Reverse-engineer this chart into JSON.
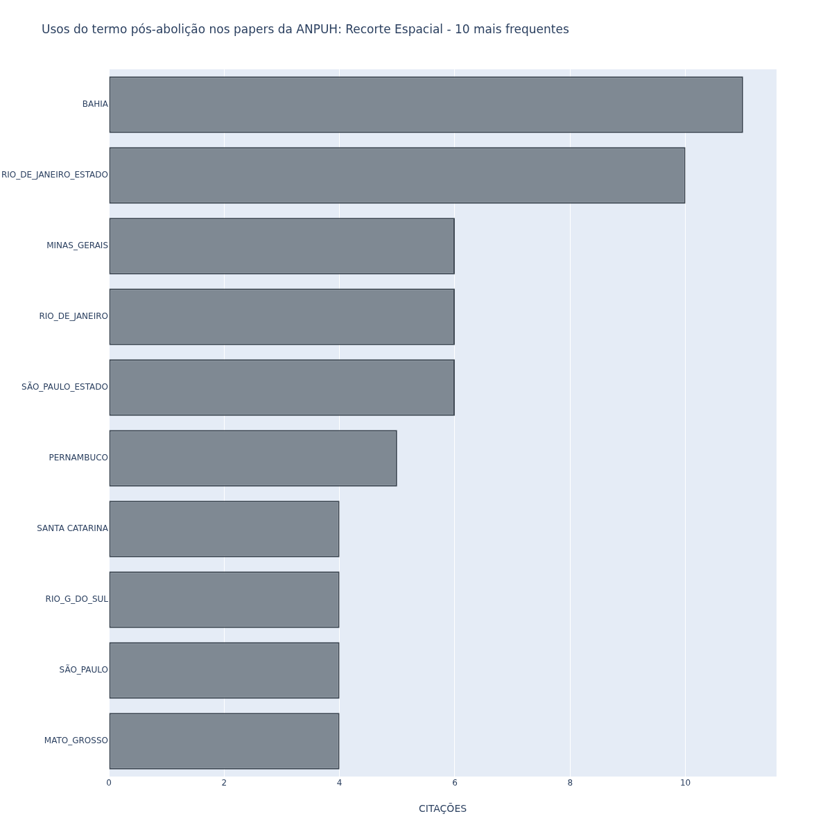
{
  "chart_data": {
    "type": "bar",
    "orientation": "horizontal",
    "title": "Usos do termo pós-abolição nos papers da ANPUH: Recorte Espacial - 10 mais frequentes",
    "xlabel": "CITAÇÕES",
    "categories": [
      "BAHIA",
      "RIO_DE_JANEIRO_ESTADO",
      "MINAS_GERAIS",
      "RIO_DE_JANEIRO",
      "SÃO_PAULO_ESTADO",
      "PERNAMBUCO",
      "SANTA CATARINA",
      "RIO_G_DO_SUL",
      "SÃO_PAULO",
      "MATO_GROSSO"
    ],
    "values": [
      11,
      10,
      6,
      6,
      6,
      5,
      4,
      4,
      4,
      4
    ],
    "color": "#7f8993",
    "xlim": [
      0,
      11.58
    ],
    "xticks": [
      0,
      2,
      4,
      6,
      8,
      10
    ],
    "grid": "x",
    "legend": false
  }
}
